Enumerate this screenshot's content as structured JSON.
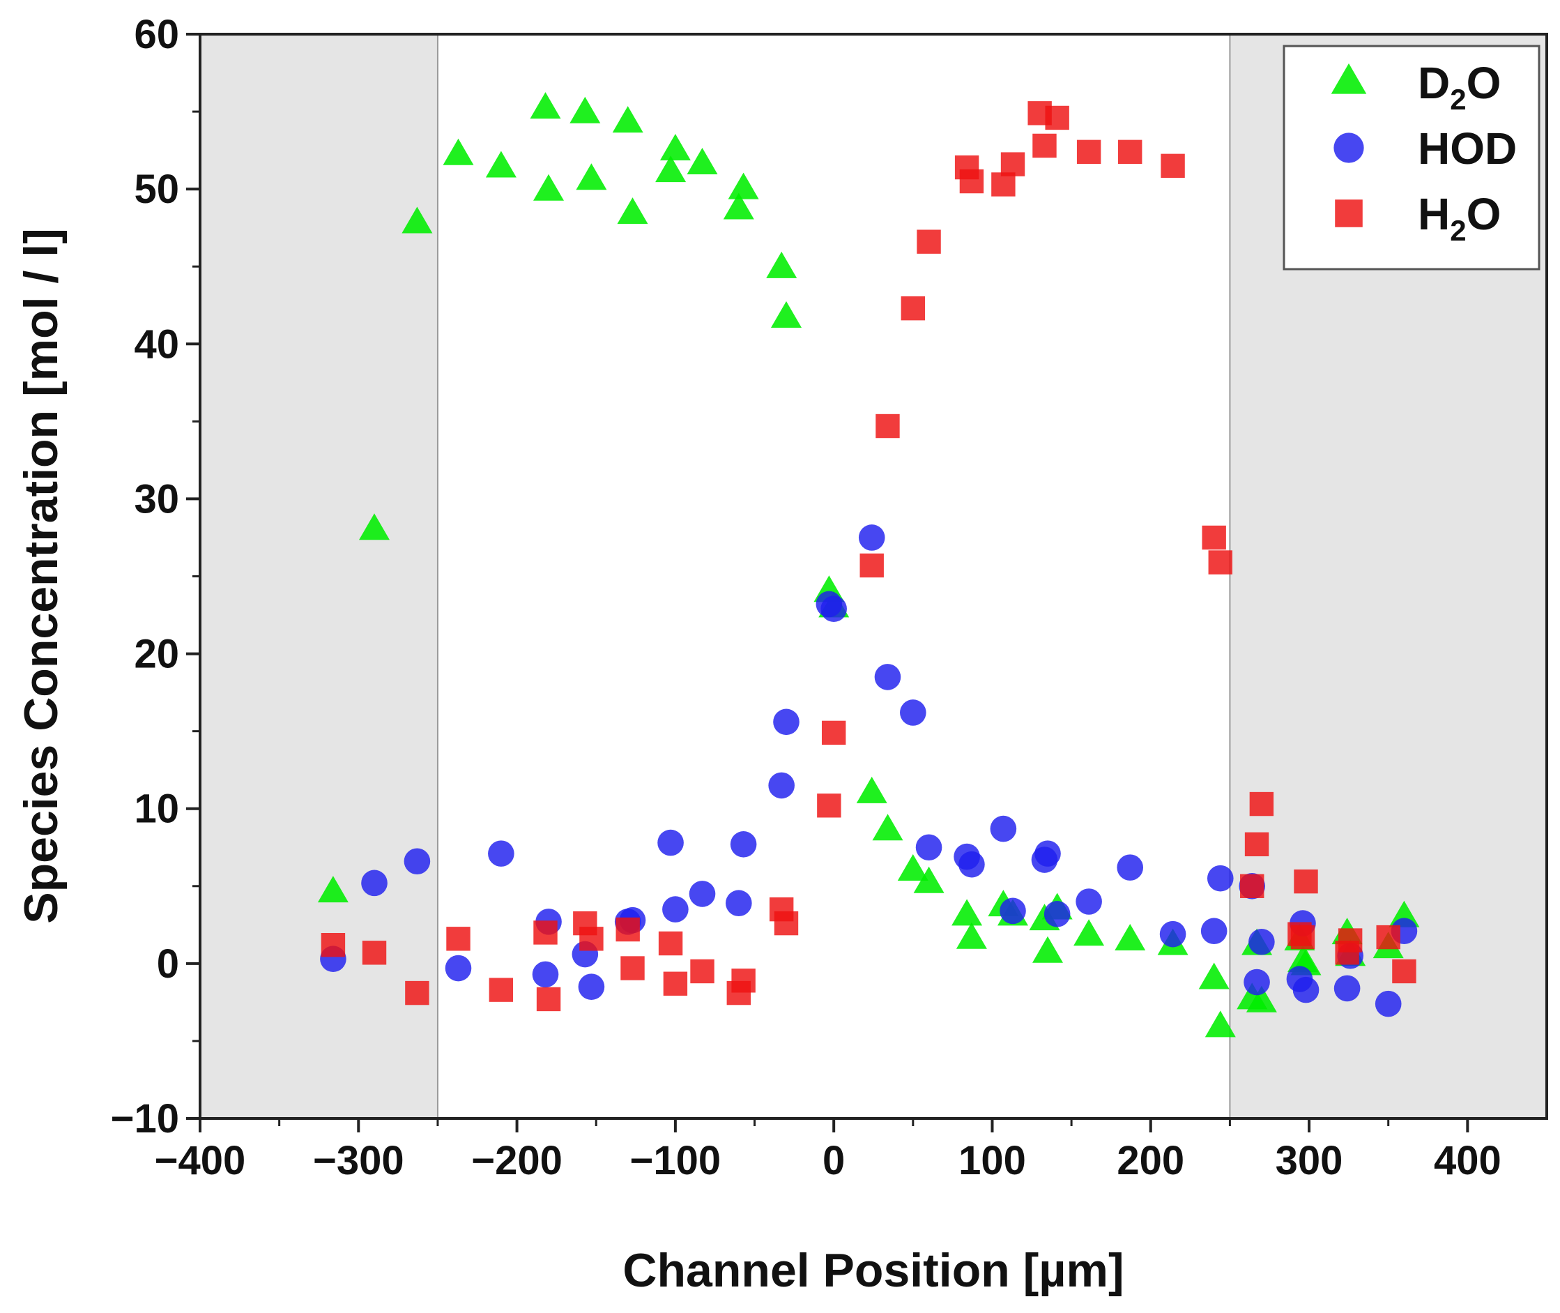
{
  "chart_data": {
    "type": "scatter",
    "title": "",
    "xlabel": "Channel Position [µm]",
    "ylabel": "Species Concentration [mol / l]",
    "xlim": [
      -400,
      450
    ],
    "ylim": [
      -10,
      60
    ],
    "x_ticks": [
      -400,
      -300,
      -200,
      -100,
      0,
      100,
      200,
      300,
      400
    ],
    "x_tick_labels": [
      "−400",
      "−300",
      "−200",
      "−100",
      "0",
      "100",
      "200",
      "300",
      "400"
    ],
    "y_ticks": [
      -10,
      0,
      10,
      20,
      30,
      40,
      50,
      60
    ],
    "y_tick_labels": [
      "−10",
      "0",
      "10",
      "20",
      "30",
      "40",
      "50",
      "60"
    ],
    "grid": false,
    "legend_position": "top-right",
    "shaded_regions": [
      {
        "x_start": -400,
        "x_end": -250,
        "color": "#e5e5e5"
      },
      {
        "x_start": 250,
        "x_end": 450,
        "color": "#e5e5e5"
      }
    ],
    "series": [
      {
        "name": "D2O",
        "legend_main": "D",
        "legend_sub": "2",
        "legend_tail": "O",
        "marker": "triangle",
        "color": "#00ee00",
        "points": [
          [
            -316,
            4.6
          ],
          [
            -290,
            28
          ],
          [
            -263,
            47.8
          ],
          [
            -237,
            52.2
          ],
          [
            -210,
            51.4
          ],
          [
            -182,
            55.2
          ],
          [
            -180,
            49.9
          ],
          [
            -157,
            54.9
          ],
          [
            -153,
            50.6
          ],
          [
            -130,
            54.3
          ],
          [
            -127,
            48.4
          ],
          [
            -103,
            51.1
          ],
          [
            -100,
            52.5
          ],
          [
            -83,
            51.6
          ],
          [
            -60,
            48.7
          ],
          [
            -57,
            50
          ],
          [
            -33,
            44.9
          ],
          [
            -30,
            41.7
          ],
          [
            -3,
            24
          ],
          [
            0,
            23
          ],
          [
            24,
            11
          ],
          [
            34,
            8.6
          ],
          [
            50,
            6
          ],
          [
            60,
            5.2
          ],
          [
            84,
            3.1
          ],
          [
            87,
            1.6
          ],
          [
            107,
            3.7
          ],
          [
            113,
            3.1
          ],
          [
            133,
            2.8
          ],
          [
            135,
            0.7
          ],
          [
            141,
            3.5
          ],
          [
            161,
            1.8
          ],
          [
            187,
            1.5
          ],
          [
            214,
            1.2
          ],
          [
            240,
            -1
          ],
          [
            244,
            -4.1
          ],
          [
            264,
            -2.3
          ],
          [
            267,
            1.2
          ],
          [
            270,
            -2.5
          ],
          [
            294,
            1.5
          ],
          [
            296,
            0.1
          ],
          [
            298,
            -0.1
          ],
          [
            324,
            1.9
          ],
          [
            326,
            0.5
          ],
          [
            350,
            1
          ],
          [
            360,
            3
          ]
        ]
      },
      {
        "name": "HOD",
        "legend_main": "HOD",
        "legend_sub": "",
        "legend_tail": "",
        "marker": "circle",
        "color": "#1e1eee",
        "points": [
          [
            -316,
            0.3
          ],
          [
            -290,
            5.2
          ],
          [
            -263,
            6.6
          ],
          [
            -237,
            -0.3
          ],
          [
            -210,
            7.1
          ],
          [
            -182,
            -0.7
          ],
          [
            -180,
            2.7
          ],
          [
            -157,
            0.6
          ],
          [
            -153,
            -1.5
          ],
          [
            -130,
            2.7
          ],
          [
            -127,
            2.8
          ],
          [
            -103,
            7.8
          ],
          [
            -100,
            3.5
          ],
          [
            -83,
            4.5
          ],
          [
            -60,
            3.9
          ],
          [
            -57,
            7.7
          ],
          [
            -33,
            11.5
          ],
          [
            -30,
            15.6
          ],
          [
            -3,
            23.2
          ],
          [
            0,
            22.9
          ],
          [
            24,
            27.5
          ],
          [
            34,
            18.5
          ],
          [
            50,
            16.2
          ],
          [
            60,
            7.5
          ],
          [
            84,
            6.9
          ],
          [
            87,
            6.4
          ],
          [
            107,
            8.7
          ],
          [
            113,
            3.4
          ],
          [
            133,
            6.7
          ],
          [
            135,
            7.1
          ],
          [
            141,
            3.2
          ],
          [
            161,
            4
          ],
          [
            187,
            6.2
          ],
          [
            214,
            1.9
          ],
          [
            240,
            2.1
          ],
          [
            244,
            5.5
          ],
          [
            264,
            5
          ],
          [
            267,
            -1.2
          ],
          [
            270,
            1.4
          ],
          [
            294,
            -1
          ],
          [
            296,
            2.6
          ],
          [
            298,
            -1.7
          ],
          [
            324,
            -1.6
          ],
          [
            326,
            0.5
          ],
          [
            350,
            -2.6
          ],
          [
            360,
            2.1
          ]
        ]
      },
      {
        "name": "H2O",
        "legend_main": "H",
        "legend_sub": "2",
        "legend_tail": "O",
        "marker": "square",
        "color": "#ee1111",
        "points": [
          [
            -316,
            1.2
          ],
          [
            -290,
            0.7
          ],
          [
            -263,
            -1.9
          ],
          [
            -237,
            1.6
          ],
          [
            -210,
            -1.7
          ],
          [
            -182,
            2
          ],
          [
            -180,
            -2.3
          ],
          [
            -157,
            2.6
          ],
          [
            -153,
            1.6
          ],
          [
            -130,
            2.2
          ],
          [
            -127,
            -0.3
          ],
          [
            -103,
            1.3
          ],
          [
            -100,
            -1.3
          ],
          [
            -83,
            -0.5
          ],
          [
            -60,
            -1.9
          ],
          [
            -57,
            -1.1
          ],
          [
            -33,
            3.5
          ],
          [
            -30,
            2.6
          ],
          [
            -3,
            10.2
          ],
          [
            0,
            14.9
          ],
          [
            24,
            25.7
          ],
          [
            34,
            34.7
          ],
          [
            50,
            42.3
          ],
          [
            60,
            46.6
          ],
          [
            84,
            51.4
          ],
          [
            87,
            50.5
          ],
          [
            107,
            50.3
          ],
          [
            113,
            51.6
          ],
          [
            130,
            54.9
          ],
          [
            133,
            52.8
          ],
          [
            141,
            54.6
          ],
          [
            161,
            52.4
          ],
          [
            187,
            52.4
          ],
          [
            214,
            51.5
          ],
          [
            240,
            27.5
          ],
          [
            244,
            25.9
          ],
          [
            264,
            5
          ],
          [
            267,
            7.7
          ],
          [
            270,
            10.3
          ],
          [
            294,
            1.9
          ],
          [
            296,
            1.7
          ],
          [
            298,
            5.3
          ],
          [
            324,
            0.7
          ],
          [
            326,
            1.5
          ],
          [
            350,
            1.7
          ],
          [
            360,
            -0.5
          ]
        ]
      }
    ]
  }
}
